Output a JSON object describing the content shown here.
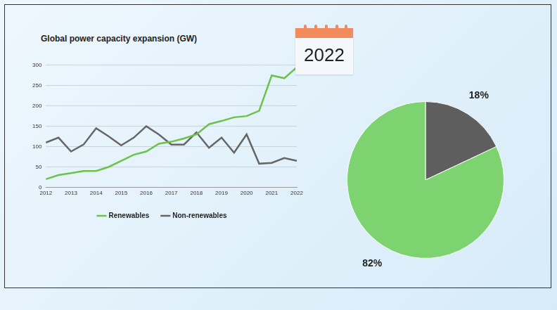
{
  "chart_data": [
    {
      "type": "line",
      "title": "Global power capacity expansion (GW)",
      "categories": [
        "2012",
        null,
        "2013",
        null,
        "2014",
        null,
        "2015",
        null,
        "2016",
        null,
        "2017",
        null,
        "2018",
        null,
        "2019",
        null,
        "2020",
        null,
        "2021",
        null,
        "2022"
      ],
      "series": [
        {
          "name": "Renewables",
          "color": "#6cc24a",
          "values": [
            20,
            30,
            35,
            40,
            40,
            50,
            65,
            80,
            88,
            107,
            112,
            120,
            130,
            155,
            163,
            172,
            175,
            188,
            275,
            268,
            295
          ]
        },
        {
          "name": "Non-renewables",
          "color": "#666666",
          "values": [
            110,
            122,
            88,
            105,
            145,
            125,
            103,
            122,
            150,
            130,
            105,
            105,
            135,
            97,
            122,
            85,
            130,
            58,
            60,
            72,
            65
          ]
        }
      ],
      "ylim": [
        0,
        300
      ],
      "yticks": [
        0,
        50,
        100,
        150,
        200,
        250,
        300
      ],
      "grid": true,
      "legend": "bottom"
    },
    {
      "type": "pie",
      "title": "2022",
      "values": [
        18,
        82
      ],
      "colors": [
        "#5e5e5e",
        "#7dd36f"
      ],
      "value_labels": [
        "18%",
        "82%"
      ],
      "data_labels": true
    }
  ]
}
